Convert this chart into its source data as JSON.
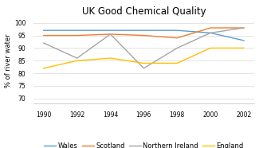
{
  "title": "UK Good Chemical Quality",
  "ylabel": "% of river water",
  "years": [
    1990,
    1992,
    1994,
    1996,
    1998,
    2000,
    2002
  ],
  "series": {
    "Wales": [
      97,
      97,
      97,
      97,
      97,
      96,
      93
    ],
    "Scotland": [
      95,
      95,
      95.5,
      95,
      94,
      98,
      98
    ],
    "Northern Ireland": [
      92,
      86,
      95.5,
      82,
      90,
      96,
      98
    ],
    "England": [
      82,
      85,
      86,
      84,
      84,
      90,
      90
    ]
  },
  "colors": {
    "Wales": "#5b9bd5",
    "Scotland": "#ed7d31",
    "Northern Ireland": "#a5a5a5",
    "England": "#ffc000"
  },
  "ylim": [
    68,
    102
  ],
  "yticks": [
    70,
    75,
    80,
    85,
    90,
    95,
    100
  ],
  "background": "#ffffff",
  "grid_color": "#d9d9d9",
  "title_fontsize": 8.5,
  "legend_fontsize": 6,
  "axis_fontsize": 6,
  "tick_fontsize": 5.5
}
